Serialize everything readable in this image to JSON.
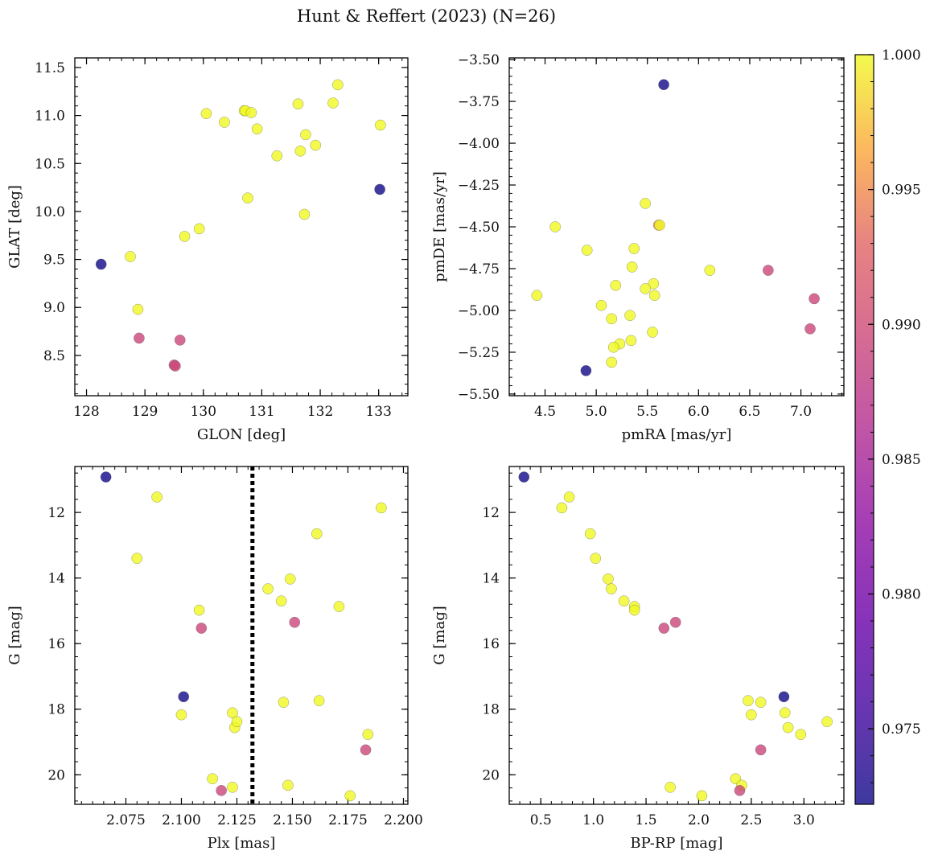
{
  "title": "Hunt & Reffert (2023) (N=26)",
  "colorbar": {
    "min": 0.9722,
    "max": 1.0,
    "ticks": [
      0.975,
      0.98,
      0.985,
      0.99,
      0.995,
      1.0
    ],
    "tick_labels": [
      "0.975",
      "0.980",
      "0.985",
      "0.990",
      "0.995",
      "1.000"
    ],
    "colormap": "plasma"
  },
  "chart_data": [
    {
      "type": "scatter",
      "name": "glon-glat",
      "xlabel": "GLON [deg]",
      "ylabel": "GLAT [deg]",
      "xlim": [
        127.8,
        133.5
      ],
      "ylim": [
        8.08,
        11.6
      ],
      "xticks": [
        128,
        129,
        130,
        131,
        132,
        133
      ],
      "xtick_labels": [
        "128",
        "129",
        "130",
        "131",
        "132",
        "133"
      ],
      "yticks": [
        8.5,
        9.0,
        9.5,
        10.0,
        10.5,
        11.0,
        11.5
      ],
      "ytick_labels": [
        "8.5",
        "9.0",
        "9.5",
        "10.0",
        "10.5",
        "11.0",
        "11.5"
      ],
      "points": [
        {
          "x": 128.25,
          "y": 9.45,
          "c": 0.9724
        },
        {
          "x": 128.75,
          "y": 9.53,
          "c": 1.0
        },
        {
          "x": 128.88,
          "y": 8.98,
          "c": 1.0
        },
        {
          "x": 128.9,
          "y": 8.68,
          "c": 0.9895
        },
        {
          "x": 129.5,
          "y": 8.4,
          "c": 0.9895
        },
        {
          "x": 129.52,
          "y": 8.39,
          "c": 0.9895
        },
        {
          "x": 129.6,
          "y": 8.66,
          "c": 0.9895
        },
        {
          "x": 129.68,
          "y": 9.74,
          "c": 1.0
        },
        {
          "x": 129.93,
          "y": 9.82,
          "c": 1.0
        },
        {
          "x": 130.05,
          "y": 11.02,
          "c": 1.0
        },
        {
          "x": 130.36,
          "y": 10.93,
          "c": 1.0
        },
        {
          "x": 130.7,
          "y": 11.05,
          "c": 1.0
        },
        {
          "x": 130.72,
          "y": 11.05,
          "c": 1.0
        },
        {
          "x": 130.76,
          "y": 10.14,
          "c": 1.0
        },
        {
          "x": 130.82,
          "y": 11.03,
          "c": 1.0
        },
        {
          "x": 130.92,
          "y": 10.86,
          "c": 1.0
        },
        {
          "x": 131.26,
          "y": 10.58,
          "c": 1.0
        },
        {
          "x": 131.62,
          "y": 11.12,
          "c": 1.0
        },
        {
          "x": 131.66,
          "y": 10.63,
          "c": 1.0
        },
        {
          "x": 131.73,
          "y": 9.97,
          "c": 1.0
        },
        {
          "x": 131.75,
          "y": 10.8,
          "c": 1.0
        },
        {
          "x": 131.92,
          "y": 10.69,
          "c": 1.0
        },
        {
          "x": 132.22,
          "y": 11.13,
          "c": 1.0
        },
        {
          "x": 132.3,
          "y": 11.32,
          "c": 1.0
        },
        {
          "x": 133.02,
          "y": 10.23,
          "c": 0.9724
        },
        {
          "x": 133.03,
          "y": 10.9,
          "c": 1.0
        }
      ]
    },
    {
      "type": "scatter",
      "name": "pmra-pmde",
      "xlabel": "pmRA [mas/yr]",
      "ylabel": "pmDE [mas/yr]",
      "xlim": [
        4.15,
        7.42
      ],
      "ylim": [
        -5.51,
        -3.49
      ],
      "xticks": [
        4.5,
        5.0,
        5.5,
        6.0,
        6.5,
        7.0
      ],
      "xtick_labels": [
        "4.5",
        "5.0",
        "5.5",
        "6.0",
        "6.5",
        "7.0"
      ],
      "yticks": [
        -5.5,
        -5.25,
        -5.0,
        -4.75,
        -4.5,
        -4.25,
        -4.0,
        -3.75,
        -3.5
      ],
      "ytick_labels": [
        "−5.50",
        "−5.25",
        "−5.00",
        "−4.75",
        "−4.50",
        "−4.25",
        "−4.00",
        "−3.75",
        "−3.50"
      ],
      "points": [
        {
          "x": 5.66,
          "y": -3.65,
          "c": 0.9724
        },
        {
          "x": 5.48,
          "y": -4.36,
          "c": 1.0
        },
        {
          "x": 4.6,
          "y": -4.5,
          "c": 1.0
        },
        {
          "x": 5.61,
          "y": -4.49,
          "c": 0.995
        },
        {
          "x": 5.62,
          "y": -4.49,
          "c": 1.0
        },
        {
          "x": 4.91,
          "y": -4.64,
          "c": 1.0
        },
        {
          "x": 5.37,
          "y": -4.63,
          "c": 1.0
        },
        {
          "x": 5.35,
          "y": -4.74,
          "c": 1.0
        },
        {
          "x": 6.11,
          "y": -4.76,
          "c": 1.0
        },
        {
          "x": 6.68,
          "y": -4.76,
          "c": 0.9895
        },
        {
          "x": 5.19,
          "y": -4.85,
          "c": 1.0
        },
        {
          "x": 5.56,
          "y": -4.84,
          "c": 1.0
        },
        {
          "x": 5.48,
          "y": -4.87,
          "c": 1.0
        },
        {
          "x": 5.57,
          "y": -4.91,
          "c": 1.0
        },
        {
          "x": 4.42,
          "y": -4.91,
          "c": 1.0
        },
        {
          "x": 7.13,
          "y": -4.93,
          "c": 0.9895
        },
        {
          "x": 5.05,
          "y": -4.97,
          "c": 1.0
        },
        {
          "x": 5.33,
          "y": -5.03,
          "c": 1.0
        },
        {
          "x": 5.15,
          "y": -5.05,
          "c": 1.0
        },
        {
          "x": 7.09,
          "y": -5.11,
          "c": 0.9895
        },
        {
          "x": 5.55,
          "y": -5.13,
          "c": 1.0
        },
        {
          "x": 5.34,
          "y": -5.18,
          "c": 1.0
        },
        {
          "x": 5.23,
          "y": -5.2,
          "c": 1.0
        },
        {
          "x": 5.17,
          "y": -5.22,
          "c": 1.0
        },
        {
          "x": 5.15,
          "y": -5.31,
          "c": 1.0
        },
        {
          "x": 4.9,
          "y": -5.36,
          "c": 0.9724
        }
      ]
    },
    {
      "type": "scatter",
      "name": "plx-g",
      "xlabel": "Plx [mas]",
      "ylabel": "G [mag]",
      "xlim": [
        2.052,
        2.202
      ],
      "ylim": [
        20.9,
        10.6
      ],
      "y_inverted": true,
      "xticks": [
        2.075,
        2.1,
        2.125,
        2.15,
        2.175,
        2.2
      ],
      "xtick_labels": [
        "2.075",
        "2.100",
        "2.125",
        "2.150",
        "2.175",
        "2.200"
      ],
      "yticks": [
        12,
        14,
        16,
        18,
        20
      ],
      "ytick_labels": [
        "12",
        "14",
        "16",
        "18",
        "20"
      ],
      "vline": {
        "x": 2.132,
        "style": "dotted"
      },
      "points": [
        {
          "x": 2.066,
          "y": 10.92,
          "c": 0.9724
        },
        {
          "x": 2.089,
          "y": 11.53,
          "c": 1.0
        },
        {
          "x": 2.08,
          "y": 13.4,
          "c": 1.0
        },
        {
          "x": 2.108,
          "y": 14.98,
          "c": 1.0
        },
        {
          "x": 2.109,
          "y": 15.53,
          "c": 0.9895
        },
        {
          "x": 2.101,
          "y": 17.62,
          "c": 0.9724
        },
        {
          "x": 2.1,
          "y": 18.17,
          "c": 1.0
        },
        {
          "x": 2.123,
          "y": 18.11,
          "c": 1.0
        },
        {
          "x": 2.124,
          "y": 18.56,
          "c": 1.0
        },
        {
          "x": 2.125,
          "y": 18.38,
          "c": 1.0
        },
        {
          "x": 2.114,
          "y": 20.12,
          "c": 1.0
        },
        {
          "x": 2.118,
          "y": 20.48,
          "c": 0.9895
        },
        {
          "x": 2.123,
          "y": 20.38,
          "c": 1.0
        },
        {
          "x": 2.139,
          "y": 14.33,
          "c": 1.0
        },
        {
          "x": 2.145,
          "y": 14.7,
          "c": 1.0
        },
        {
          "x": 2.149,
          "y": 14.03,
          "c": 1.0
        },
        {
          "x": 2.151,
          "y": 15.35,
          "c": 0.9895
        },
        {
          "x": 2.146,
          "y": 17.79,
          "c": 1.0
        },
        {
          "x": 2.148,
          "y": 20.32,
          "c": 1.0
        },
        {
          "x": 2.161,
          "y": 12.65,
          "c": 1.0
        },
        {
          "x": 2.162,
          "y": 17.74,
          "c": 1.0
        },
        {
          "x": 2.171,
          "y": 14.87,
          "c": 1.0
        },
        {
          "x": 2.176,
          "y": 20.64,
          "c": 1.0
        },
        {
          "x": 2.183,
          "y": 19.24,
          "c": 0.9895
        },
        {
          "x": 2.184,
          "y": 18.77,
          "c": 1.0
        },
        {
          "x": 2.19,
          "y": 11.86,
          "c": 1.0
        }
      ]
    },
    {
      "type": "scatter",
      "name": "bprp-g",
      "xlabel": "BP-RP [mag]",
      "ylabel": "G [mag]",
      "xlim": [
        0.2,
        3.38
      ],
      "ylim": [
        20.9,
        10.6
      ],
      "y_inverted": true,
      "xticks": [
        0.5,
        1.0,
        1.5,
        2.0,
        2.5,
        3.0
      ],
      "xtick_labels": [
        "0.5",
        "1.0",
        "1.5",
        "2.0",
        "2.5",
        "3.0"
      ],
      "yticks": [
        12,
        14,
        16,
        18,
        20
      ],
      "ytick_labels": [
        "12",
        "14",
        "16",
        "18",
        "20"
      ],
      "points": [
        {
          "x": 0.34,
          "y": 10.92,
          "c": 0.9724
        },
        {
          "x": 0.77,
          "y": 11.53,
          "c": 1.0
        },
        {
          "x": 0.7,
          "y": 11.86,
          "c": 1.0
        },
        {
          "x": 0.97,
          "y": 12.65,
          "c": 1.0
        },
        {
          "x": 1.02,
          "y": 13.4,
          "c": 1.0
        },
        {
          "x": 1.14,
          "y": 14.03,
          "c": 1.0
        },
        {
          "x": 1.17,
          "y": 14.33,
          "c": 1.0
        },
        {
          "x": 1.29,
          "y": 14.7,
          "c": 1.0
        },
        {
          "x": 1.39,
          "y": 14.87,
          "c": 1.0
        },
        {
          "x": 1.39,
          "y": 14.98,
          "c": 1.0
        },
        {
          "x": 1.67,
          "y": 15.53,
          "c": 0.9895
        },
        {
          "x": 1.78,
          "y": 15.35,
          "c": 0.9895
        },
        {
          "x": 2.47,
          "y": 17.74,
          "c": 1.0
        },
        {
          "x": 2.59,
          "y": 17.79,
          "c": 1.0
        },
        {
          "x": 2.81,
          "y": 17.62,
          "c": 0.9724
        },
        {
          "x": 2.82,
          "y": 18.11,
          "c": 1.0
        },
        {
          "x": 2.5,
          "y": 18.17,
          "c": 1.0
        },
        {
          "x": 2.85,
          "y": 18.56,
          "c": 1.0
        },
        {
          "x": 2.97,
          "y": 18.77,
          "c": 1.0
        },
        {
          "x": 3.22,
          "y": 18.38,
          "c": 1.0
        },
        {
          "x": 2.59,
          "y": 19.24,
          "c": 0.9895
        },
        {
          "x": 2.35,
          "y": 20.12,
          "c": 1.0
        },
        {
          "x": 2.41,
          "y": 20.32,
          "c": 1.0
        },
        {
          "x": 2.39,
          "y": 20.48,
          "c": 0.9895
        },
        {
          "x": 1.73,
          "y": 20.38,
          "c": 1.0
        },
        {
          "x": 2.03,
          "y": 20.64,
          "c": 1.0
        }
      ]
    }
  ]
}
